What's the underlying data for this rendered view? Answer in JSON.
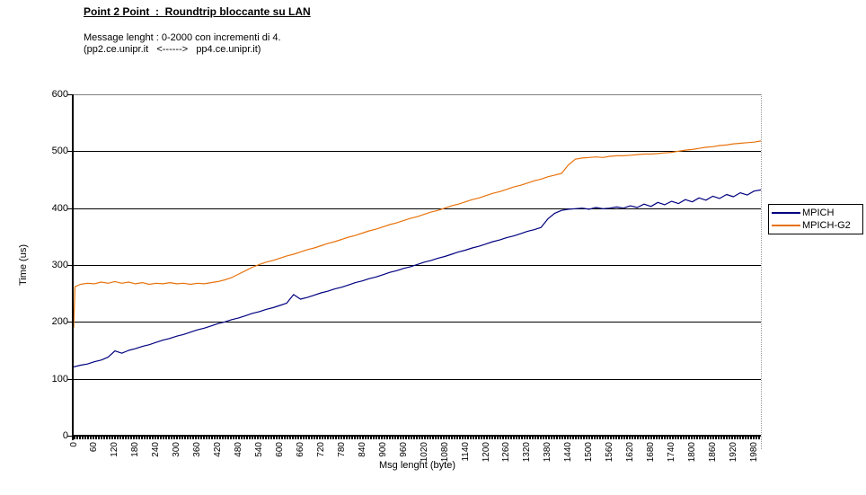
{
  "chart_data": {
    "type": "line",
    "title": "Point 2 Point  :  Roundtrip bloccante su LAN",
    "subtitle1": "Message lenght : 0-2000 con incrementi di 4.",
    "subtitle2": "(pp2.ce.unipr.it   <------>   pp4.ce.unipr.it)",
    "xlabel": "Msg lenght (byte)",
    "ylabel": "Time (us)",
    "xlim": [
      0,
      2000
    ],
    "ylim": [
      0,
      600
    ],
    "x_ticks": [
      0,
      60,
      120,
      180,
      240,
      300,
      360,
      420,
      480,
      540,
      600,
      660,
      720,
      780,
      840,
      900,
      960,
      1020,
      1080,
      1140,
      1200,
      1260,
      1320,
      1380,
      1440,
      1500,
      1560,
      1620,
      1680,
      1740,
      1800,
      1860,
      1920,
      1980
    ],
    "y_ticks": [
      0,
      100,
      200,
      300,
      400,
      500,
      600
    ],
    "grid": "horizontal",
    "legend_position": "right",
    "plot_border_color": "#808080",
    "gridline_color": "#000000",
    "series": [
      {
        "name": "MPICH",
        "color": "#000080",
        "x": [
          0,
          20,
          40,
          60,
          80,
          100,
          120,
          140,
          160,
          180,
          200,
          220,
          240,
          260,
          280,
          300,
          320,
          340,
          360,
          380,
          400,
          420,
          440,
          460,
          480,
          500,
          520,
          540,
          560,
          580,
          600,
          620,
          640,
          660,
          680,
          700,
          720,
          740,
          760,
          780,
          800,
          820,
          840,
          860,
          880,
          900,
          920,
          940,
          960,
          980,
          1000,
          1020,
          1040,
          1060,
          1080,
          1100,
          1120,
          1140,
          1160,
          1180,
          1200,
          1220,
          1240,
          1260,
          1280,
          1300,
          1320,
          1340,
          1360,
          1380,
          1400,
          1420,
          1440,
          1460,
          1480,
          1500,
          1520,
          1540,
          1560,
          1580,
          1600,
          1620,
          1640,
          1660,
          1680,
          1700,
          1720,
          1740,
          1760,
          1780,
          1800,
          1820,
          1840,
          1860,
          1880,
          1900,
          1920,
          1940,
          1960,
          1980,
          2000
        ],
        "values": [
          121,
          124,
          126,
          130,
          133,
          138,
          149,
          145,
          150,
          153,
          157,
          160,
          164,
          168,
          171,
          175,
          178,
          182,
          186,
          189,
          193,
          197,
          200,
          204,
          207,
          211,
          215,
          218,
          222,
          225,
          229,
          233,
          248,
          240,
          243,
          247,
          251,
          254,
          258,
          261,
          265,
          269,
          272,
          276,
          279,
          283,
          287,
          290,
          294,
          297,
          301,
          305,
          308,
          312,
          315,
          319,
          323,
          326,
          330,
          333,
          337,
          341,
          344,
          348,
          351,
          355,
          359,
          362,
          366,
          381,
          391,
          396,
          398,
          399,
          400,
          398,
          401,
          399,
          400,
          402,
          400,
          404,
          401,
          407,
          403,
          410,
          406,
          412,
          408,
          415,
          411,
          418,
          414,
          421,
          417,
          424,
          420,
          427,
          423,
          430,
          432
        ]
      },
      {
        "name": "MPICH-G2",
        "color": "#E8720C",
        "x": [
          0,
          4,
          20,
          40,
          60,
          80,
          100,
          120,
          140,
          160,
          180,
          200,
          220,
          240,
          260,
          280,
          300,
          320,
          340,
          360,
          380,
          400,
          420,
          440,
          460,
          480,
          500,
          520,
          540,
          560,
          580,
          600,
          620,
          640,
          660,
          680,
          700,
          720,
          740,
          760,
          780,
          800,
          820,
          840,
          860,
          880,
          900,
          920,
          940,
          960,
          980,
          1000,
          1020,
          1040,
          1060,
          1080,
          1100,
          1120,
          1140,
          1160,
          1180,
          1200,
          1220,
          1240,
          1260,
          1280,
          1300,
          1320,
          1340,
          1360,
          1380,
          1400,
          1420,
          1440,
          1460,
          1480,
          1500,
          1520,
          1540,
          1560,
          1580,
          1600,
          1620,
          1640,
          1660,
          1680,
          1700,
          1720,
          1740,
          1760,
          1780,
          1800,
          1820,
          1840,
          1860,
          1880,
          1900,
          1920,
          1940,
          1960,
          1980,
          2000
        ],
        "values": [
          190,
          262,
          266,
          268,
          267,
          270,
          268,
          271,
          268,
          270,
          267,
          269,
          266,
          268,
          267,
          269,
          267,
          268,
          266,
          268,
          267,
          269,
          271,
          274,
          278,
          284,
          290,
          296,
          301,
          305,
          308,
          312,
          316,
          319,
          323,
          327,
          330,
          334,
          338,
          341,
          345,
          349,
          352,
          356,
          360,
          363,
          367,
          371,
          374,
          378,
          382,
          385,
          389,
          393,
          396,
          400,
          404,
          407,
          411,
          415,
          418,
          422,
          426,
          429,
          433,
          437,
          440,
          444,
          448,
          451,
          455,
          458,
          461,
          476,
          486,
          488,
          489,
          490,
          489,
          491,
          492,
          492,
          493,
          494,
          495,
          495,
          496,
          497,
          498,
          500,
          502,
          503,
          505,
          507,
          508,
          510,
          511,
          513,
          514,
          515,
          516,
          518
        ]
      }
    ]
  }
}
